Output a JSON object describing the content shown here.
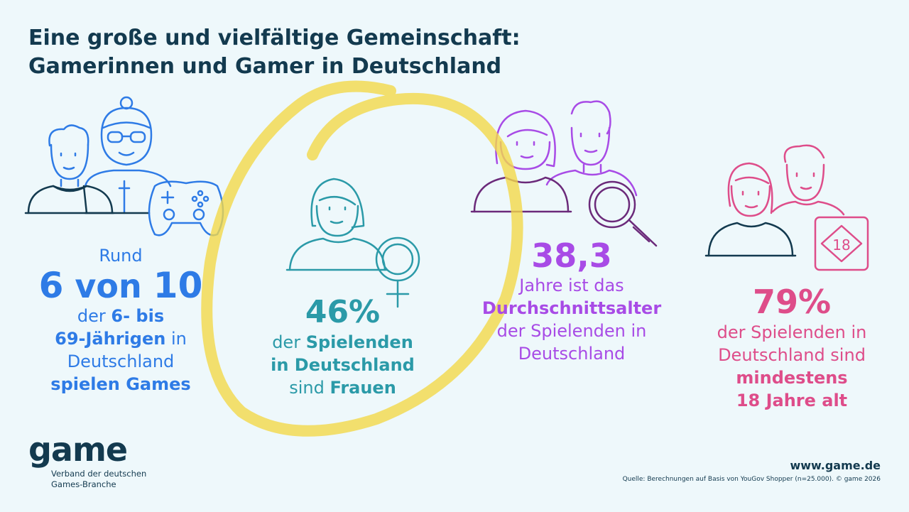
{
  "title": {
    "line1": "Eine große und vielfältige Gemeinschaft:",
    "line2": "Gamerinnen und Gamer in Deutschland"
  },
  "stat1": {
    "l1": "Rund",
    "big_a": "6",
    "big_b": " von ",
    "big_c": "10",
    "l3a": "der ",
    "l3b": "6- bis",
    "l4a": "69-Jährigen",
    "l4b": " in",
    "l5": "Deutschland",
    "l6": "spielen Games"
  },
  "stat2": {
    "big": "46%",
    "l2a": "der ",
    "l2b": "Spielenden",
    "l3": "in Deutschland",
    "l4a": "sind ",
    "l4b": "Frauen"
  },
  "stat3": {
    "big": "38,3",
    "l2": "Jahre ist das",
    "l3": "Durchschnittsalter",
    "l4": "der Spielenden in",
    "l5": "Deutschland"
  },
  "stat4": {
    "big": "79%",
    "l2": "der Spielenden in",
    "l3": "Deutschland sind",
    "l4": "mindestens",
    "l5": "18 Jahre alt",
    "badge": "18"
  },
  "logo": {
    "word": "game",
    "sub1": "Verband der deutschen",
    "sub2": "Games-Branche"
  },
  "footer": {
    "website": "www.game.de",
    "source": "Quelle: Berechnungen auf Basis von YouGov Shopper (n=25.000). © game 2026"
  },
  "icons": [
    "people-controller-icon",
    "woman-female-symbol-icon",
    "couple-magnifier-icon",
    "couple-age-18-icon",
    "highlight-circle"
  ],
  "colors": {
    "navy": "#133a4f",
    "blue": "#2e7be6",
    "teal": "#2b9aa8",
    "purple": "#a84be6",
    "pink": "#de4d8a",
    "highlight": "#f2d84a",
    "background": "#eef8fb"
  }
}
